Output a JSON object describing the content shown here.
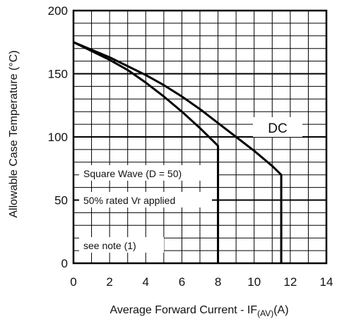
{
  "chart_data": {
    "type": "line",
    "xlabel_main": "Average Forward Current - IF",
    "xlabel_sub": "(AV)",
    "xlabel_unit": "(A)",
    "ylabel": "Allowable Case Temperature (°C)",
    "xlim": [
      0,
      14
    ],
    "ylim": [
      0,
      200
    ],
    "xticks": [
      0,
      2,
      4,
      6,
      8,
      10,
      12,
      14
    ],
    "yticks": [
      0,
      50,
      100,
      150,
      200
    ],
    "grid": {
      "x_step": 1,
      "y_step": 10
    },
    "series": [
      {
        "name": "DC",
        "x": [
          0,
          1,
          2,
          3,
          4,
          5,
          6,
          7,
          8,
          9,
          10,
          11,
          11.5,
          11.5
        ],
        "y": [
          175,
          169,
          163,
          156,
          149,
          141,
          132,
          122,
          111,
          100,
          89,
          77,
          70,
          0
        ]
      },
      {
        "name": "",
        "x": [
          0,
          1,
          2,
          3,
          4,
          5,
          6,
          7,
          8,
          8
        ],
        "y": [
          175,
          168,
          161,
          153,
          143,
          132,
          120,
          107,
          93,
          0
        ]
      }
    ],
    "annotations": {
      "dc_label": "DC",
      "note1": "Square Wave (D = 50)",
      "note2": "50% rated Vr applied",
      "note3": "see note (1)"
    },
    "line_color": "#000000"
  }
}
